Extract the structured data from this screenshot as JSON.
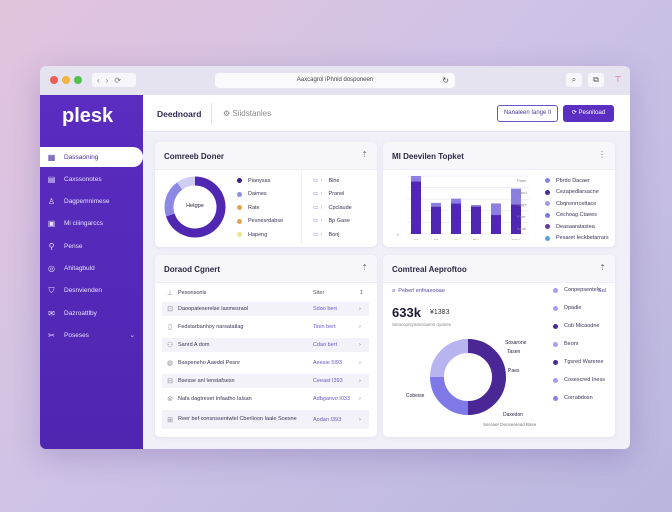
{
  "browser": {
    "url": "Aaxcagrol iPhnid dosponeen",
    "nav": [
      "‹",
      "›",
      "⟳"
    ],
    "reload": "↻",
    "tools": [
      "⌕",
      "⧉",
      "⊤"
    ]
  },
  "sidebar": {
    "logo": "plesk",
    "items": [
      {
        "label": "Dassaoning",
        "icon": "dashboard-icon",
        "active": true
      },
      {
        "label": "Caxssonotes",
        "icon": "server-icon"
      },
      {
        "label": "Dagpemnimese",
        "icon": "user-icon"
      },
      {
        "label": "Mi ciiingarccs",
        "icon": "calendar-icon"
      },
      {
        "label": "Pense",
        "icon": "key-icon"
      },
      {
        "label": "Ahitagbuld",
        "icon": "globe-icon"
      },
      {
        "label": "Desnvienden",
        "icon": "shield-icon"
      },
      {
        "label": "Dazroattlby",
        "icon": "mail-icon"
      },
      {
        "label": "Poseses",
        "icon": "tools-icon",
        "chevron": "⌄"
      }
    ]
  },
  "header": {
    "tab_active": "Deednoard",
    "tab_other": "Siidstanles",
    "btn_secondary": "Nanaleen Iange Il",
    "btn_primary": "Pesnitoad"
  },
  "card1": {
    "title": "Comreeb Doner",
    "center": "Hetgpe",
    "menu": "⇡",
    "legend": [
      {
        "label": "Pianysas",
        "color": "#3d1e8a"
      },
      {
        "label": "Daimes",
        "color": "#8d8ee8"
      },
      {
        "label": "Rate",
        "color": "#e8a24a"
      },
      {
        "label": "Pesnesrdabse",
        "color": "#e9a050"
      },
      {
        "label": "Hapeng",
        "color": "#f1e38a"
      }
    ],
    "legend2": [
      "Bine",
      "Pranel",
      "Cpclaude",
      "Bp Gase",
      "Bonj"
    ],
    "donut": [
      {
        "value": 70,
        "color": "#4f27b0"
      },
      {
        "value": 20,
        "color": "#8c88e6"
      },
      {
        "value": 10,
        "color": "#cfcdf4"
      }
    ]
  },
  "card2": {
    "title": "MI Deevilen Topket",
    "menu": "⋮",
    "legend": [
      {
        "label": "Pbrdo Dacaer",
        "color": "#8585e0"
      },
      {
        "label": "Cezapedlarsacne",
        "color": "#4a2a9a"
      },
      {
        "label": "Cbqnsnrrcettace",
        "color": "#a09ae8"
      },
      {
        "label": "Cechoag Ctaees",
        "color": "#7c7ae0"
      },
      {
        "label": "Deasaaratastea",
        "color": "#6a3a9a"
      },
      {
        "label": "Pesaret Ieckbetarrars",
        "color": "#5aa0e0"
      }
    ],
    "right_ticks": [
      "Pane",
      "Nand",
      "Dage",
      "Pare",
      "Aese"
    ]
  },
  "chart_data": {
    "type": "bar",
    "stacked": true,
    "categories": [
      "▽",
      "M",
      "◎",
      "Pie",
      "◌",
      "Mar"
    ],
    "series": [
      {
        "values": [
          100,
          52,
          58,
          52,
          36,
          56
        ],
        "color": "#4f27b0"
      },
      {
        "values": [
          10,
          7,
          9,
          3,
          22,
          30
        ],
        "color": "#8b7fe0"
      }
    ],
    "ylim": [
      0,
      110
    ],
    "yticks": [
      "0",
      "",
      "",
      "",
      "",
      ""
    ],
    "grid": true
  },
  "card3": {
    "title": "Doraod Cgnert",
    "menu": "⇡",
    "col1": "Pesonsonis",
    "col2": "Siter",
    "sort": "↥",
    "rows": [
      {
        "icon": "⊡",
        "name": "Daoopateserelse Iasmesraol",
        "value": "Sdoo bert"
      },
      {
        "icon": "▯",
        "name": "Fedstarbanhoy narsatatlag",
        "value": "Tsen bert"
      },
      {
        "icon": "⚇",
        "name": "Sanrd A dom",
        "value": "Cdao bert"
      },
      {
        "icon": "◍",
        "name": "Baspeneho Aaedol Pesnr",
        "value": "Aeesie 5I93"
      },
      {
        "icon": "⊟",
        "name": "Bsesse anl Ienstafsesn",
        "value": "Ceeast I393"
      },
      {
        "icon": "⊜",
        "name": "Nafa dagtreset Infaatho Ialsan",
        "value": "Adbganvo I033"
      },
      {
        "icon": "⊞",
        "name": "Reer bef consnssentwlel Cberlioon Iaale Soesne",
        "value": "Aodan I393"
      }
    ],
    "chevron": "›"
  },
  "card4": {
    "title": "Comtreal Aeproftoo",
    "menu": "⇡",
    "filter": "Peberl enfnaeooae",
    "filter_icon": "≡",
    "corner": "Sal",
    "big_value": "633k",
    "big_sub": "¥1383",
    "caption": "Seraroprsyaneroiarns oyanes",
    "labels": {
      "a": "Sosarone",
      "b": "Tasen",
      "c": "Paes",
      "d": "Cobeise",
      "e": "Daxedon",
      "f": "Seroaer Deosearead Base"
    },
    "donut": [
      {
        "value": 50,
        "color": "#4b2796"
      },
      {
        "value": 25,
        "color": "#7e79e6"
      },
      {
        "value": 25,
        "color": "#b8b4f0"
      }
    ],
    "legend": [
      {
        "label": "Conpepsentels",
        "color": "#a7a0e8"
      },
      {
        "label": "Dpadle",
        "color": "#a7a0e8"
      },
      {
        "label": "Cob Micaodne",
        "color": "#4a2a9a"
      },
      {
        "label": "Beonr",
        "color": "#a7a0e8"
      },
      {
        "label": "Tgsred Wareree",
        "color": "#4a2a9a"
      },
      {
        "label": "Cosescred Iness",
        "color": "#a7a0e8"
      },
      {
        "label": "Corrabdosn",
        "color": "#8a80e6"
      }
    ]
  }
}
